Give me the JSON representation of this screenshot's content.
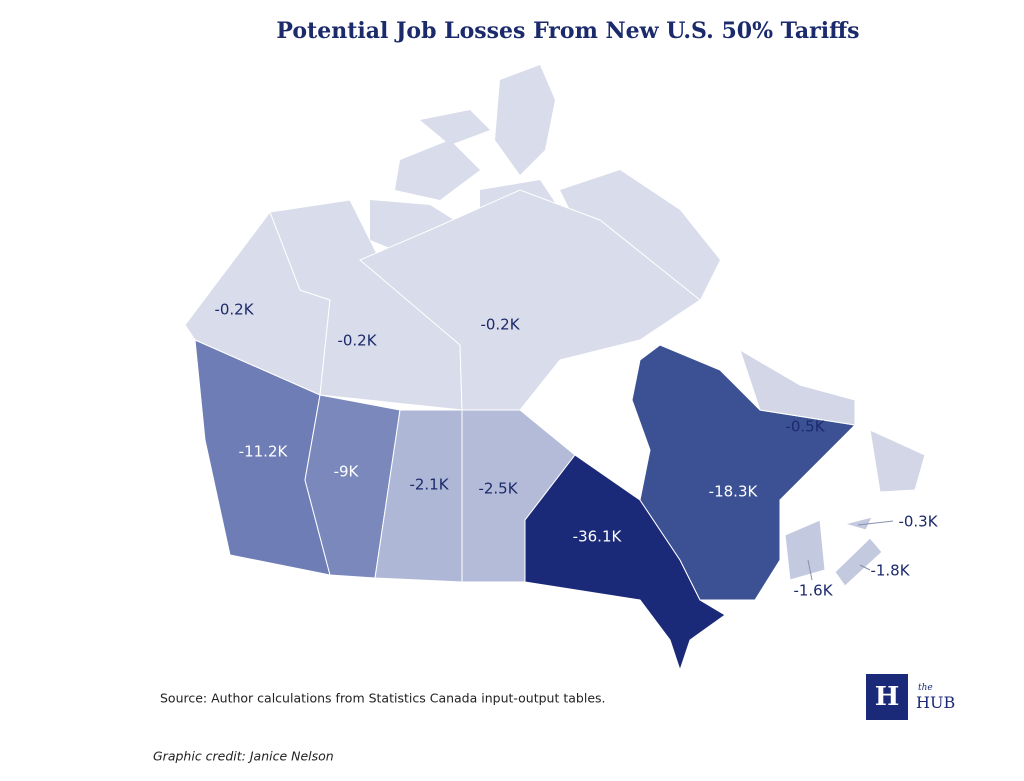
{
  "title": "Potential Job Losses From New U.S. 50% Tariffs",
  "regions": [
    {
      "label": "-0.2K",
      "color": "#d9dcea"
    },
    {
      "label": "-0.2K",
      "color": "#d9dcea"
    },
    {
      "label": "-0.2K",
      "color": "#d9dcea"
    },
    {
      "label": "-11.2K",
      "color": "#6e7db5"
    },
    {
      "label": "-9K",
      "color": "#7a88bc"
    },
    {
      "label": "-2.1K",
      "color": "#afb7d6"
    },
    {
      "label": "-2.5K",
      "color": "#b4bbd8"
    },
    {
      "label": "-36.1K",
      "color": "#1b2a78"
    },
    {
      "label": "-18.3K",
      "color": "#3c5194"
    },
    {
      "label": "-0.5K",
      "color": "#d2d6e7"
    },
    {
      "label": "-1.6K",
      "color": "#c3c9df"
    },
    {
      "label": "-1.8K",
      "color": "#c3c9df"
    },
    {
      "label": "-0.3K",
      "color": "#c3c9df"
    }
  ],
  "source": "Source: Author calculations from Statistics Canada input-output tables.",
  "credit": "Graphic credit: Janice Nelson",
  "logo": {
    "mark": "H",
    "small": "the",
    "name": "HUB"
  }
}
